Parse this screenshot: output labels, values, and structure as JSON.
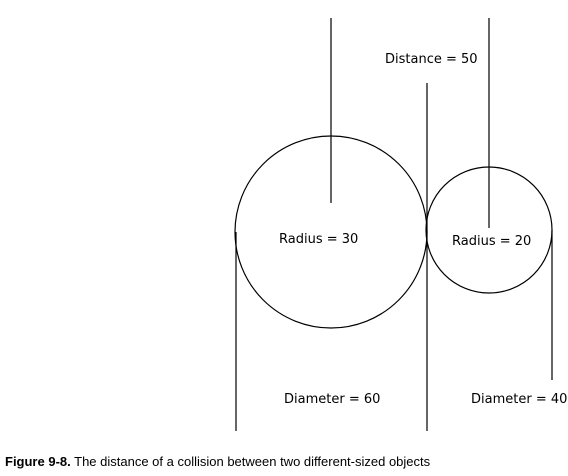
{
  "diagram": {
    "labels": {
      "distance": "Distance = 50",
      "radius_large": "Radius = 30",
      "radius_small": "Radius = 20",
      "diameter_large": "Diameter = 60",
      "diameter_small": "Diameter = 40"
    }
  },
  "caption": {
    "figure_number": "Figure 9-8.",
    "text": " The distance of a collision between two different-sized objects"
  },
  "colors": {
    "stroke": "#000000",
    "background": "#ffffff"
  }
}
